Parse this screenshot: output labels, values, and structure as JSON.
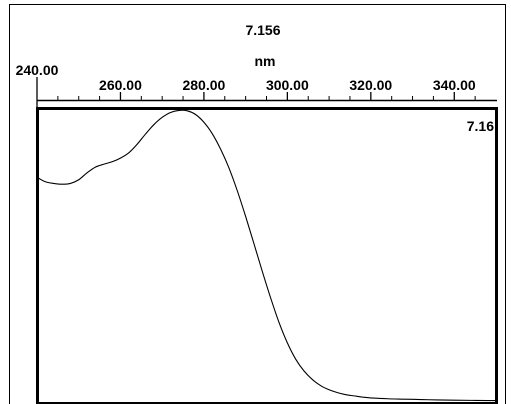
{
  "chart_data": {
    "type": "line",
    "top_value": "7.156",
    "x_unit": "nm",
    "x_axis": {
      "ticks": [
        240,
        260,
        280,
        300,
        320,
        340
      ],
      "tick_labels": [
        "240.00",
        "260.00",
        "280.00",
        "300.00",
        "320.00",
        "340.00"
      ],
      "range": [
        240,
        350
      ]
    },
    "y_axis": {
      "range": [
        0,
        7.16
      ],
      "max_label": "7.16"
    },
    "series": [
      {
        "x": [
          240,
          242,
          244,
          246,
          248,
          250,
          252,
          254,
          256,
          258,
          260,
          262,
          264,
          266,
          268,
          270,
          272,
          274,
          276,
          278,
          280,
          282,
          284,
          286,
          288,
          290,
          292,
          294,
          296,
          298,
          300,
          302,
          304,
          306,
          308,
          310,
          312,
          314,
          316,
          318,
          320,
          324,
          328,
          332,
          336,
          340,
          344,
          348,
          350
        ],
        "y": [
          5.51,
          5.4,
          5.36,
          5.34,
          5.36,
          5.45,
          5.62,
          5.76,
          5.83,
          5.89,
          5.98,
          6.11,
          6.32,
          6.57,
          6.8,
          6.98,
          7.1,
          7.15,
          7.14,
          7.05,
          6.86,
          6.58,
          6.2,
          5.74,
          5.18,
          4.55,
          3.88,
          3.2,
          2.55,
          1.95,
          1.45,
          1.05,
          0.76,
          0.55,
          0.4,
          0.3,
          0.23,
          0.18,
          0.15,
          0.12,
          0.1,
          0.08,
          0.07,
          0.06,
          0.05,
          0.045,
          0.04,
          0.035,
          0.035
        ]
      }
    ]
  }
}
